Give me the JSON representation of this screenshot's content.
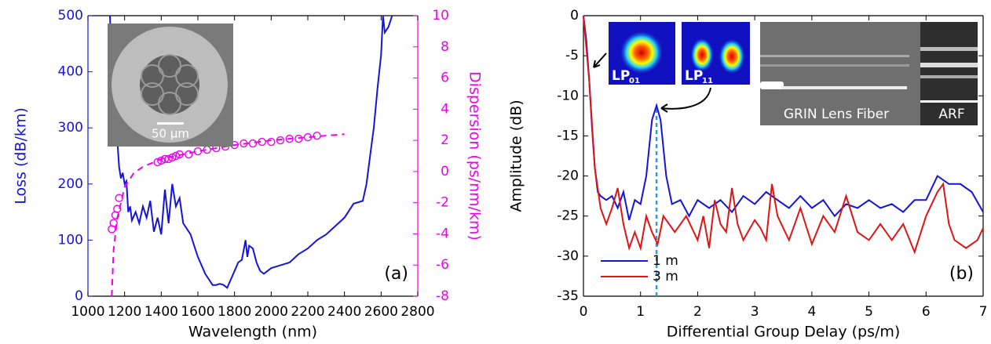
{
  "chart_data": [
    {
      "type": "line",
      "xlabel": "Wavelength (nm)",
      "ylabel": "Loss (dB/km)",
      "y2label": "Dispersion (ps/nm/km)",
      "ylabel_color": "#1414dc",
      "y2label_color": "#f000f0",
      "xlim": [
        1000,
        2800
      ],
      "xticks": [
        1000,
        1200,
        1400,
        1600,
        1800,
        2000,
        2200,
        2400,
        2600,
        2800
      ],
      "ylim": [
        0,
        500
      ],
      "yticks": [
        0,
        100,
        200,
        300,
        400,
        500
      ],
      "y2lim": [
        -8,
        10
      ],
      "y2ticks": [
        -8,
        -6,
        -4,
        -2,
        0,
        2,
        4,
        6,
        8,
        10
      ],
      "panel_label": "(a)",
      "scale_bar": "50 μm",
      "series": [
        {
          "color": "#1414dc",
          "style": "line",
          "x": [
            1120,
            1130,
            1140,
            1150,
            1160,
            1170,
            1180,
            1190,
            1200,
            1210,
            1220,
            1230,
            1240,
            1260,
            1280,
            1300,
            1320,
            1340,
            1360,
            1380,
            1400,
            1420,
            1440,
            1460,
            1480,
            1500,
            1520,
            1540,
            1560,
            1580,
            1600,
            1620,
            1640,
            1660,
            1680,
            1700,
            1720,
            1740,
            1760,
            1780,
            1800,
            1820,
            1840,
            1860,
            1870,
            1880,
            1900,
            1920,
            1940,
            1960,
            1980,
            2000,
            2050,
            2100,
            2150,
            2200,
            2250,
            2300,
            2350,
            2400,
            2450,
            2500,
            2520,
            2540,
            2560,
            2580,
            2600,
            2610,
            2620,
            2640,
            2660
          ],
          "values": [
            500,
            420,
            350,
            290,
            280,
            230,
            210,
            220,
            200,
            205,
            150,
            160,
            135,
            150,
            130,
            160,
            140,
            170,
            115,
            140,
            110,
            190,
            130,
            200,
            160,
            175,
            130,
            120,
            110,
            90,
            70,
            55,
            40,
            30,
            20,
            20,
            22,
            20,
            15,
            30,
            45,
            60,
            65,
            100,
            70,
            90,
            85,
            60,
            45,
            40,
            45,
            50,
            55,
            60,
            75,
            85,
            100,
            110,
            125,
            140,
            165,
            170,
            200,
            250,
            300,
            370,
            430,
            500,
            470,
            480,
            500
          ]
        },
        {
          "color": "#f000f0",
          "style": "markers",
          "axis": "y2",
          "x": [
            1130,
            1140,
            1150,
            1160,
            1170,
            1380,
            1400,
            1420,
            1440,
            1460,
            1480,
            1500,
            1550,
            1600,
            1650,
            1700,
            1750,
            1800,
            1850,
            1900,
            1950,
            2000,
            2050,
            2100,
            2150,
            2200,
            2250
          ],
          "values": [
            -3.7,
            -3.3,
            -2.8,
            -2.4,
            -1.7,
            0.6,
            0.7,
            0.8,
            0.8,
            0.9,
            1.0,
            1.1,
            1.1,
            1.3,
            1.4,
            1.5,
            1.6,
            1.7,
            1.8,
            1.8,
            1.9,
            1.9,
            2.0,
            2.1,
            2.1,
            2.2,
            2.3
          ]
        },
        {
          "color": "#f000f0",
          "style": "dashed",
          "axis": "y2",
          "x": [
            1130,
            1140,
            1160,
            1200,
            1250,
            1300,
            1400,
            1600,
            1800,
            2000,
            2200,
            2400
          ],
          "values": [
            -8,
            -5,
            -3,
            -1,
            -0.1,
            0.3,
            0.8,
            1.3,
            1.7,
            2.0,
            2.2,
            2.4
          ]
        }
      ]
    },
    {
      "type": "line",
      "xlabel": "Differential Group Delay (ps/m)",
      "ylabel": "Amplitude (dB)",
      "xlim": [
        0,
        7
      ],
      "xticks": [
        0,
        1,
        2,
        3,
        4,
        5,
        6,
        7
      ],
      "ylim": [
        -35,
        0
      ],
      "yticks": [
        -35,
        -30,
        -25,
        -20,
        -15,
        -10,
        -5,
        0
      ],
      "legend": "lower left",
      "panel_label": "(b)",
      "marker_x": 1.28,
      "marker_color": "#2a9be0",
      "mode_labels": [
        {
          "text": "LP",
          "subscript": "01"
        },
        {
          "text": "LP",
          "subscript": "11"
        }
      ],
      "image_labels": [
        "GRIN Lens Fiber",
        "ARF"
      ],
      "series": [
        {
          "name": "1 m",
          "color": "#1414dc",
          "style": "line",
          "x": [
            0,
            0.05,
            0.1,
            0.15,
            0.2,
            0.25,
            0.3,
            0.4,
            0.5,
            0.6,
            0.7,
            0.8,
            0.9,
            1.0,
            1.1,
            1.2,
            1.28,
            1.35,
            1.45,
            1.55,
            1.7,
            1.85,
            2.0,
            2.2,
            2.4,
            2.6,
            2.8,
            3.0,
            3.2,
            3.4,
            3.6,
            3.8,
            4.0,
            4.2,
            4.4,
            4.6,
            4.8,
            5.0,
            5.2,
            5.4,
            5.6,
            5.8,
            6.0,
            6.2,
            6.4,
            6.6,
            6.8,
            7.0
          ],
          "values": [
            0,
            -3,
            -8,
            -14,
            -19,
            -22,
            -22.5,
            -23,
            -22.5,
            -24,
            -22,
            -25.5,
            -23,
            -23.5,
            -20,
            -13,
            -11.2,
            -13,
            -20,
            -23.5,
            -23,
            -25,
            -23,
            -24,
            -23,
            -24.5,
            -22.5,
            -23.5,
            -22,
            -23,
            -24,
            -22.5,
            -24,
            -23,
            -25,
            -23.5,
            -24,
            -23,
            -24,
            -23.5,
            -24.5,
            -23,
            -23,
            -20,
            -21,
            -21,
            -22,
            -24.5
          ]
        },
        {
          "name": "3 m",
          "color": "#e01414",
          "style": "line",
          "x": [
            0,
            0.1,
            0.2,
            0.3,
            0.4,
            0.5,
            0.6,
            0.7,
            0.8,
            0.9,
            1.0,
            1.1,
            1.2,
            1.3,
            1.4,
            1.5,
            1.6,
            1.8,
            2.0,
            2.1,
            2.2,
            2.3,
            2.4,
            2.5,
            2.6,
            2.7,
            2.8,
            3.0,
            3.1,
            3.2,
            3.3,
            3.4,
            3.6,
            3.8,
            4.0,
            4.2,
            4.4,
            4.6,
            4.8,
            5.0,
            5.2,
            5.4,
            5.6,
            5.8,
            6.0,
            6.2,
            6.3,
            6.4,
            6.5,
            6.7,
            6.9,
            7.0
          ],
          "values": [
            0,
            -8,
            -19,
            -24,
            -26,
            -24,
            -21.5,
            -26,
            -29,
            -27,
            -29,
            -25,
            -27,
            -28.5,
            -25,
            -26,
            -27,
            -25,
            -28,
            -25,
            -29,
            -23,
            -26,
            -27,
            -21.5,
            -26,
            -28,
            -25.5,
            -26.5,
            -28,
            -21,
            -25,
            -28,
            -24,
            -28.5,
            -25,
            -27,
            -22.5,
            -27,
            -28,
            -26,
            -28,
            -26,
            -29.5,
            -25,
            -22,
            -21,
            -26,
            -28,
            -29,
            -28,
            -26.5
          ]
        }
      ]
    }
  ]
}
